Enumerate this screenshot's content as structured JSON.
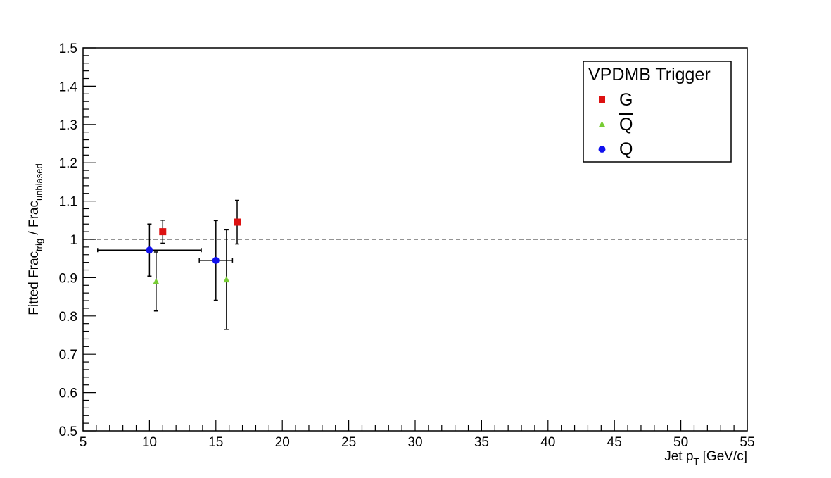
{
  "chart_data": {
    "type": "scatter",
    "title": "",
    "xlabel": {
      "main": "Jet p",
      "sub": "T",
      "unit": "[GeV/c]"
    },
    "ylabel": {
      "p1": "Fitted Frac",
      "sub1": "trig",
      "p2": " / Frac",
      "sub2": "unbiased"
    },
    "xlim": [
      5,
      55
    ],
    "ylim": [
      0.5,
      1.5
    ],
    "x_ticks": [
      "5",
      "10",
      "15",
      "20",
      "25",
      "30",
      "35",
      "40",
      "45",
      "50",
      "55"
    ],
    "y_ticks": [
      "0.5",
      "0.6",
      "0.7",
      "0.8",
      "0.9",
      "1",
      "1.1",
      "1.2",
      "1.3",
      "1.4",
      "1.5"
    ],
    "reference_line": 1.0,
    "legend": {
      "title": "VPDMB Trigger",
      "position": "top-right"
    },
    "series": [
      {
        "name": "G",
        "marker": "square",
        "color": "#dd1111",
        "points": [
          {
            "x": 11.0,
            "y": 1.02,
            "yerr": 0.03,
            "xerr": 0
          },
          {
            "x": 16.6,
            "y": 1.045,
            "yerr": 0.057,
            "xerr": 0
          }
        ]
      },
      {
        "name": "Q",
        "overline": true,
        "marker": "triangle",
        "color": "#77cc33",
        "points": [
          {
            "x": 10.5,
            "y": 0.89,
            "yerr": 0.077,
            "xerr": 0
          },
          {
            "x": 15.8,
            "y": 0.895,
            "yerr": 0.13,
            "xerr": 0
          }
        ]
      },
      {
        "name": "Q",
        "marker": "circle",
        "color": "#1111ee",
        "points": [
          {
            "x": 10.0,
            "y": 0.972,
            "yerr": 0.068,
            "xerr": 3.9
          },
          {
            "x": 15.0,
            "y": 0.945,
            "yerr": 0.104,
            "xerr": 1.25
          }
        ]
      }
    ]
  }
}
